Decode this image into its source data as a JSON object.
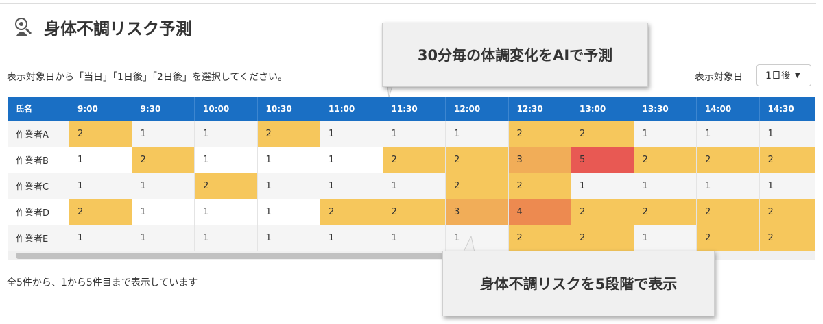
{
  "header": {
    "title": "身体不調リスク予測"
  },
  "description": "表示対象日から「当日」「1日後」「2日後」を選択してください。",
  "selector": {
    "label": "表示対象日",
    "value": "1日後"
  },
  "callouts": [
    "30分毎の体調変化をAIで予測",
    "身体不調リスクを5段階で表示"
  ],
  "table": {
    "columns": [
      "氏名",
      "9:00",
      "9:30",
      "10:00",
      "10:30",
      "11:00",
      "11:30",
      "12:00",
      "12:30",
      "13:00",
      "13:30",
      "14:00",
      "14:30"
    ],
    "rows": [
      {
        "name": "作業者A",
        "values": [
          2,
          1,
          1,
          2,
          1,
          1,
          1,
          2,
          2,
          1,
          1,
          1
        ]
      },
      {
        "name": "作業者B",
        "values": [
          1,
          2,
          1,
          1,
          1,
          2,
          2,
          3,
          5,
          2,
          2,
          2
        ]
      },
      {
        "name": "作業者C",
        "values": [
          1,
          1,
          2,
          1,
          1,
          1,
          2,
          2,
          1,
          1,
          1,
          1
        ]
      },
      {
        "name": "作業者D",
        "values": [
          2,
          1,
          1,
          1,
          2,
          2,
          3,
          4,
          2,
          2,
          2,
          2
        ]
      },
      {
        "name": "作業者E",
        "values": [
          1,
          1,
          1,
          1,
          1,
          1,
          1,
          2,
          2,
          1,
          2,
          2
        ]
      }
    ],
    "levels": [
      {
        "value": 2,
        "color": "#f6c75c"
      },
      {
        "value": 3,
        "color": "#f1ad58"
      },
      {
        "value": 4,
        "color": "#ed8a50"
      },
      {
        "value": 5,
        "color": "#e85953"
      }
    ]
  },
  "footer": "全5件から、1から5件目まで表示しています"
}
